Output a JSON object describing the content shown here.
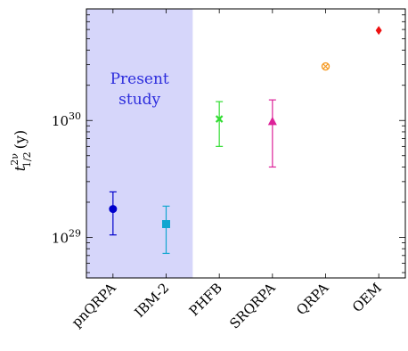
{
  "chart_data": {
    "type": "scatter",
    "ylabel": {
      "base": "t",
      "sup": "2ν",
      "sub": "1/2",
      "suffix": "(y)"
    },
    "yscale": "log",
    "ylim": [
      4.5e+28,
      9e+30
    ],
    "yticks": [
      {
        "value": 1e+29,
        "base": "10",
        "exp": "29"
      },
      {
        "value": 1e+30,
        "base": "10",
        "exp": "30"
      }
    ],
    "annotation": {
      "lines": [
        "Present",
        "study"
      ],
      "color": "#2b2bdc"
    },
    "highlight": {
      "from_index": 0,
      "to_index": 1,
      "color": "#d6d6fa"
    },
    "series": [
      {
        "category": "pnQRPA",
        "y": 1.75e+29,
        "err_low": 1.05e+29,
        "err_high": 2.45e+29,
        "marker": "circle",
        "color": "#0000cc"
      },
      {
        "category": "IBM-2",
        "y": 1.3e+29,
        "err_low": 7.3e+28,
        "err_high": 1.85e+29,
        "marker": "square",
        "color": "#11a6d0"
      },
      {
        "category": "PHFB",
        "y": 1.03e+30,
        "err_low": 6e+29,
        "err_high": 1.45e+30,
        "marker": "cross",
        "color": "#33dd33"
      },
      {
        "category": "SRQRPA",
        "y": 9.8e+29,
        "err_low": 4e+29,
        "err_high": 1.5e+30,
        "marker": "triangle",
        "color": "#dd2299"
      },
      {
        "category": "QRPA",
        "y": 2.9e+30,
        "marker": "otimes",
        "color": "#f59a23"
      },
      {
        "category": "OEM",
        "y": 5.9e+30,
        "marker": "diamond",
        "color": "#ee1111"
      }
    ],
    "grid": false,
    "legend": "none"
  }
}
